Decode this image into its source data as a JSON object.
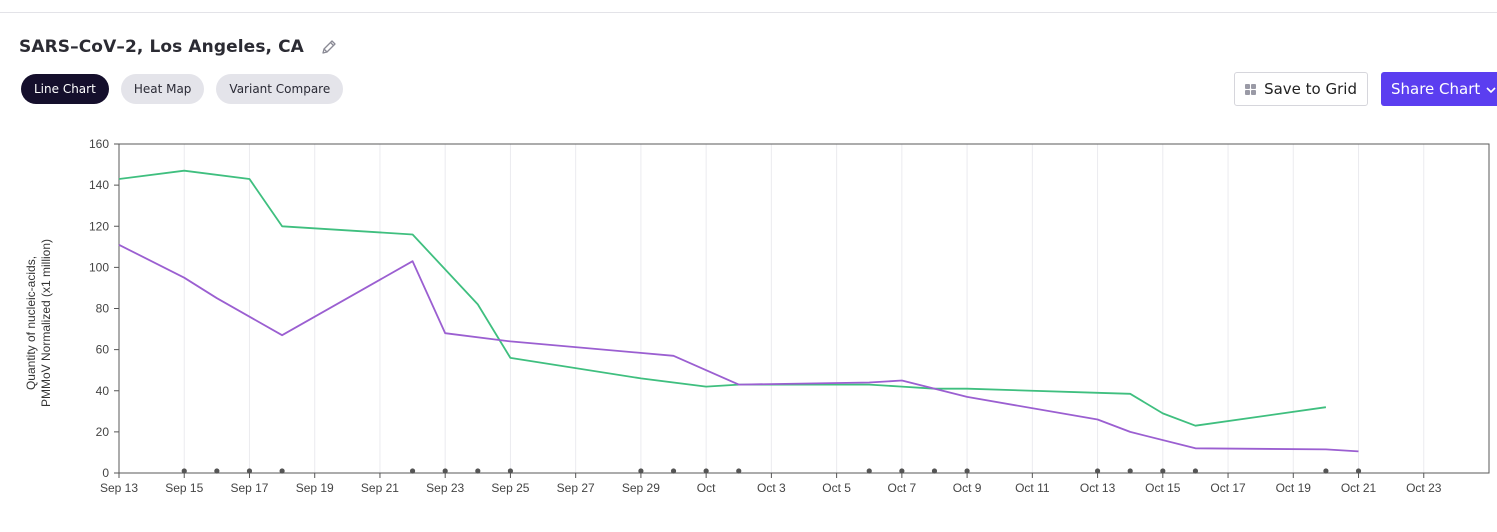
{
  "header": {
    "title": "SARS–CoV–2, Los Angeles, CA",
    "edit_icon": "pencil-icon"
  },
  "tabs": [
    {
      "label": "Line Chart",
      "active": true
    },
    {
      "label": "Heat Map",
      "active": false
    },
    {
      "label": "Variant Compare",
      "active": false
    }
  ],
  "actions": {
    "save_label": "Save to Grid",
    "save_icon": "grid-icon",
    "share_label": "Share Chart",
    "share_icon": "chevron-down-icon"
  },
  "colors": {
    "accent": "#5b3ef0",
    "series_green": "#3fbf7f",
    "series_purple": "#9b5fd1",
    "marker": "#555555"
  },
  "chart_data": {
    "type": "line",
    "title": "",
    "xlabel": "",
    "ylabel": "Quantity of nucleic-acids, PMMoV Normalized (x1 million)",
    "ylabel_lines": [
      "Quantity of nucleic-acids,",
      "PMMoV Normalized (x1 million)"
    ],
    "ylim": [
      0,
      160
    ],
    "yticks": [
      0,
      20,
      40,
      60,
      80,
      100,
      120,
      140,
      160
    ],
    "xlim": [
      "2023-09-13",
      "2023-10-25"
    ],
    "xticks": [
      {
        "date": "2023-09-13",
        "label": "Sep 13"
      },
      {
        "date": "2023-09-15",
        "label": "Sep 15"
      },
      {
        "date": "2023-09-17",
        "label": "Sep 17"
      },
      {
        "date": "2023-09-19",
        "label": "Sep 19"
      },
      {
        "date": "2023-09-21",
        "label": "Sep 21"
      },
      {
        "date": "2023-09-23",
        "label": "Sep 23"
      },
      {
        "date": "2023-09-25",
        "label": "Sep 25"
      },
      {
        "date": "2023-09-27",
        "label": "Sep 27"
      },
      {
        "date": "2023-09-29",
        "label": "Sep 29"
      },
      {
        "date": "2023-10-01",
        "label": "Oct"
      },
      {
        "date": "2023-10-03",
        "label": "Oct 3"
      },
      {
        "date": "2023-10-05",
        "label": "Oct 5"
      },
      {
        "date": "2023-10-07",
        "label": "Oct 7"
      },
      {
        "date": "2023-10-09",
        "label": "Oct 9"
      },
      {
        "date": "2023-10-11",
        "label": "Oct 11"
      },
      {
        "date": "2023-10-13",
        "label": "Oct 13"
      },
      {
        "date": "2023-10-15",
        "label": "Oct 15"
      },
      {
        "date": "2023-10-17",
        "label": "Oct 17"
      },
      {
        "date": "2023-10-19",
        "label": "Oct 19"
      },
      {
        "date": "2023-10-21",
        "label": "Oct 21"
      },
      {
        "date": "2023-10-23",
        "label": "Oct 23"
      }
    ],
    "grid": {
      "vertical": true,
      "horizontal": false
    },
    "series": [
      {
        "color": "#3fbf7f",
        "points": [
          [
            "2023-09-13",
            143
          ],
          [
            "2023-09-15",
            147
          ],
          [
            "2023-09-17",
            143
          ],
          [
            "2023-09-18",
            120
          ],
          [
            "2023-09-22",
            116
          ],
          [
            "2023-09-24",
            82
          ],
          [
            "2023-09-25",
            56
          ],
          [
            "2023-09-29",
            46
          ],
          [
            "2023-10-01",
            42
          ],
          [
            "2023-10-02",
            43
          ],
          [
            "2023-10-06",
            43
          ],
          [
            "2023-10-07",
            42
          ],
          [
            "2023-10-08",
            41
          ],
          [
            "2023-10-09",
            41
          ],
          [
            "2023-10-13",
            39
          ],
          [
            "2023-10-14",
            38.5
          ],
          [
            "2023-10-15",
            29
          ],
          [
            "2023-10-16",
            23
          ],
          [
            "2023-10-20",
            32
          ]
        ]
      },
      {
        "color": "#9b5fd1",
        "points": [
          [
            "2023-09-13",
            111
          ],
          [
            "2023-09-15",
            95
          ],
          [
            "2023-09-16",
            85
          ],
          [
            "2023-09-18",
            67
          ],
          [
            "2023-09-22",
            103
          ],
          [
            "2023-09-23",
            68
          ],
          [
            "2023-09-25",
            64
          ],
          [
            "2023-09-30",
            57
          ],
          [
            "2023-10-02",
            43
          ],
          [
            "2023-10-06",
            44
          ],
          [
            "2023-10-07",
            45
          ],
          [
            "2023-10-09",
            37
          ],
          [
            "2023-10-13",
            26
          ],
          [
            "2023-10-14",
            20
          ],
          [
            "2023-10-16",
            12
          ],
          [
            "2023-10-20",
            11.5
          ],
          [
            "2023-10-21",
            10.5
          ]
        ]
      }
    ],
    "sample_markers": [
      "2023-09-15",
      "2023-09-16",
      "2023-09-17",
      "2023-09-18",
      "2023-09-22",
      "2023-09-23",
      "2023-09-24",
      "2023-09-25",
      "2023-09-29",
      "2023-09-30",
      "2023-10-01",
      "2023-10-02",
      "2023-10-06",
      "2023-10-07",
      "2023-10-08",
      "2023-10-09",
      "2023-10-13",
      "2023-10-14",
      "2023-10-15",
      "2023-10-16",
      "2023-10-20",
      "2023-10-21"
    ]
  }
}
